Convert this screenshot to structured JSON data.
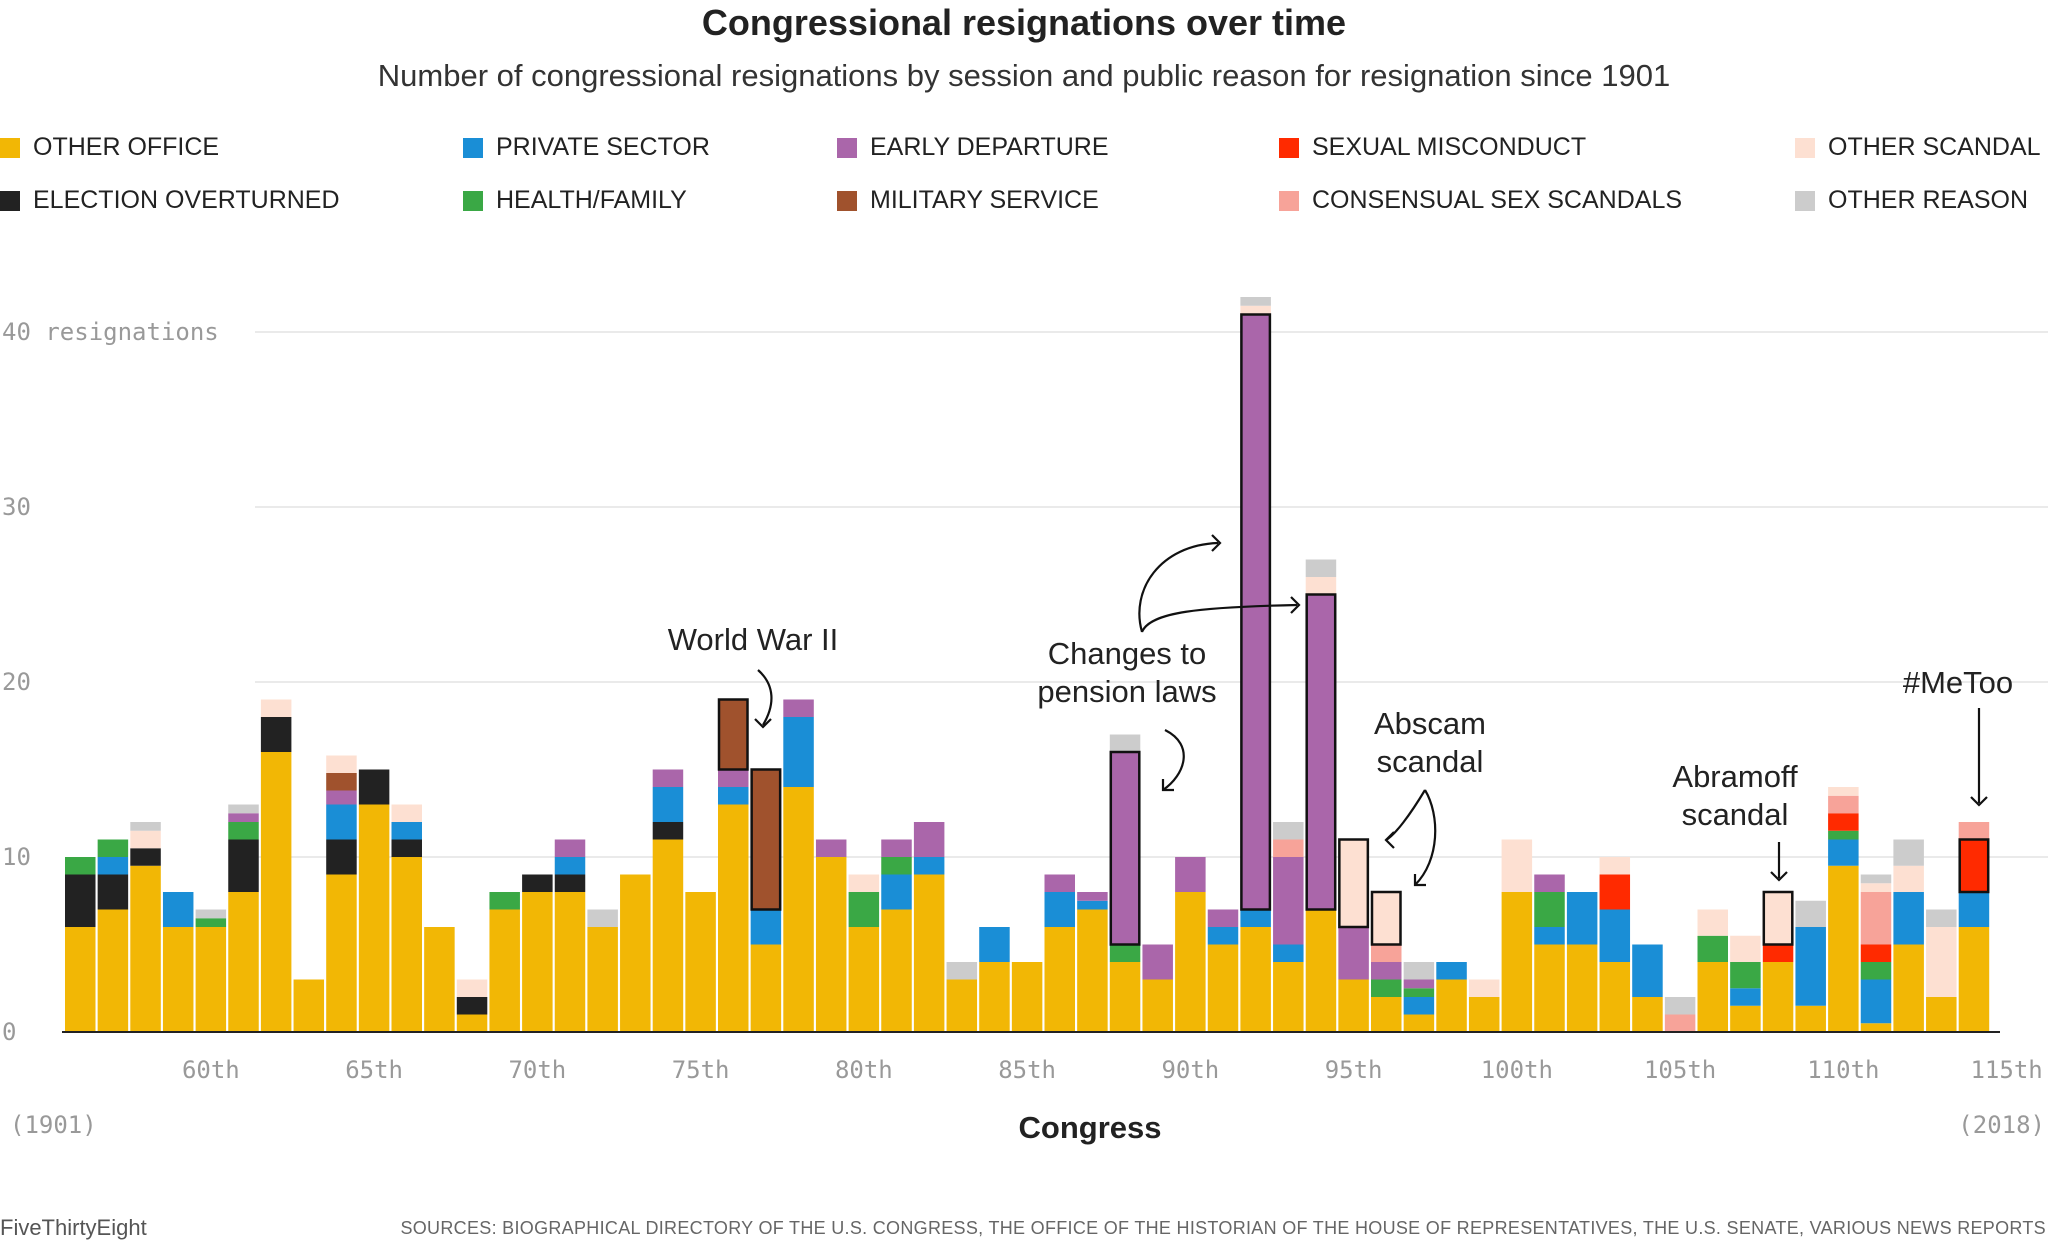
{
  "title": "Congressional resignations over time",
  "subtitle": "Number of congressional resignations by session and public reason for resignation since 1901",
  "legend": [
    {
      "key": "other_office",
      "label": "OTHER OFFICE",
      "color": "#F2B705"
    },
    {
      "key": "private_sector",
      "label": "PRIVATE SECTOR",
      "color": "#1A8ED6"
    },
    {
      "key": "early_departure",
      "label": "EARLY DEPARTURE",
      "color": "#AA66AA"
    },
    {
      "key": "sexual_misconduct",
      "label": "SEXUAL MISCONDUCT",
      "color": "#FF2A00"
    },
    {
      "key": "other_scandal",
      "label": "OTHER SCANDAL",
      "color": "#FDE0D2"
    },
    {
      "key": "election_overturned",
      "label": "ELECTION OVERTURNED",
      "color": "#222222"
    },
    {
      "key": "health_family",
      "label": "HEALTH/FAMILY",
      "color": "#3AA845"
    },
    {
      "key": "military_service",
      "label": "MILITARY SERVICE",
      "color": "#A0522D"
    },
    {
      "key": "consensual_sex_scandals",
      "label": "CONSENSUAL SEX SCANDALS",
      "color": "#F7A399"
    },
    {
      "key": "other_reason",
      "label": "OTHER REASON",
      "color": "#CCCCCC"
    }
  ],
  "chart_data": {
    "type": "bar",
    "stacked": true,
    "title": "Congressional resignations over time",
    "subtitle": "Number of congressional resignations by session and public reason for resignation since 1901",
    "xlabel": "Congress",
    "ylabel_inline": "40 resignations",
    "ylim": [
      0,
      42
    ],
    "yticks": [
      0,
      10,
      20,
      30,
      40
    ],
    "grid": true,
    "legend_position": "top",
    "x_start_label": "(1901)",
    "x_end_label": "(2018)",
    "x_tick_labels": [
      {
        "congress": 60,
        "label": "60th"
      },
      {
        "congress": 65,
        "label": "65th"
      },
      {
        "congress": 70,
        "label": "70th"
      },
      {
        "congress": 75,
        "label": "75th"
      },
      {
        "congress": 80,
        "label": "80th"
      },
      {
        "congress": 85,
        "label": "85th"
      },
      {
        "congress": 90,
        "label": "90th"
      },
      {
        "congress": 95,
        "label": "95th"
      },
      {
        "congress": 100,
        "label": "100th"
      },
      {
        "congress": 105,
        "label": "105th"
      },
      {
        "congress": 110,
        "label": "110th"
      },
      {
        "congress": 115,
        "label": "115th"
      }
    ],
    "order": [
      "other_office",
      "election_overturned",
      "private_sector",
      "health_family",
      "early_departure",
      "military_service",
      "sexual_misconduct",
      "consensual_sex_scandals",
      "other_scandal",
      "other_reason"
    ],
    "bars": [
      {
        "congress": 56,
        "other_office": 6,
        "election_overturned": 3,
        "health_family": 1
      },
      {
        "congress": 57,
        "other_office": 7,
        "election_overturned": 2,
        "private_sector": 1,
        "health_family": 1
      },
      {
        "congress": 58,
        "other_office": 9.5,
        "election_overturned": 1,
        "other_scandal": 1,
        "other_reason": 0.5
      },
      {
        "congress": 59,
        "other_office": 6,
        "private_sector": 2
      },
      {
        "congress": 60,
        "other_office": 6,
        "health_family": 0.5,
        "other_reason": 0.5
      },
      {
        "congress": 61,
        "other_office": 8,
        "election_overturned": 3,
        "health_family": 1,
        "early_departure": 0.5,
        "other_reason": 0.5
      },
      {
        "congress": 62,
        "other_office": 16,
        "election_overturned": 2,
        "other_scandal": 1
      },
      {
        "congress": 63,
        "other_office": 3
      },
      {
        "congress": 64,
        "other_office": 9,
        "election_overturned": 2,
        "private_sector": 2,
        "early_departure": 0.8,
        "military_service": 1,
        "other_scandal": 1
      },
      {
        "congress": 65,
        "other_office": 13,
        "election_overturned": 2
      },
      {
        "congress": 66,
        "other_office": 10,
        "election_overturned": 1,
        "private_sector": 1,
        "other_scandal": 1
      },
      {
        "congress": 67,
        "other_office": 6
      },
      {
        "congress": 68,
        "other_office": 1,
        "election_overturned": 1,
        "other_scandal": 1
      },
      {
        "congress": 69,
        "other_office": 7,
        "health_family": 1
      },
      {
        "congress": 70,
        "other_office": 8,
        "election_overturned": 1
      },
      {
        "congress": 71,
        "other_office": 8,
        "election_overturned": 1,
        "early_departure": 1,
        "private_sector": 1
      },
      {
        "congress": 72,
        "other_office": 6,
        "other_reason": 1
      },
      {
        "congress": 73,
        "other_office": 9
      },
      {
        "congress": 74,
        "other_office": 11,
        "election_overturned": 1,
        "early_departure": 1,
        "private_sector": 2
      },
      {
        "congress": 75,
        "other_office": 8
      },
      {
        "congress": 76,
        "other_office": 13,
        "private_sector": 1,
        "early_departure": 1,
        "military_service": 4
      },
      {
        "congress": 77,
        "other_office": 5,
        "private_sector": 2,
        "military_service": 8
      },
      {
        "congress": 78,
        "other_office": 14,
        "private_sector": 4,
        "early_departure": 1
      },
      {
        "congress": 79,
        "other_office": 10,
        "early_departure": 1
      },
      {
        "congress": 80,
        "other_office": 6,
        "health_family": 2,
        "other_scandal": 1
      },
      {
        "congress": 81,
        "other_office": 7,
        "private_sector": 2,
        "health_family": 1,
        "early_departure": 1
      },
      {
        "congress": 82,
        "other_office": 9,
        "private_sector": 1,
        "early_departure": 2
      },
      {
        "congress": 83,
        "other_office": 3,
        "other_reason": 1
      },
      {
        "congress": 84,
        "other_office": 4,
        "private_sector": 2
      },
      {
        "congress": 85,
        "other_office": 4
      },
      {
        "congress": 86,
        "other_office": 6,
        "private_sector": 2,
        "early_departure": 1
      },
      {
        "congress": 87,
        "other_office": 7,
        "private_sector": 0.5,
        "early_departure": 0.5
      },
      {
        "congress": 88,
        "other_office": 4,
        "health_family": 1,
        "early_departure": 11,
        "other_reason": 1
      },
      {
        "congress": 89,
        "other_office": 3,
        "early_departure": 2
      },
      {
        "congress": 90,
        "other_office": 8,
        "early_departure": 2
      },
      {
        "congress": 91,
        "other_office": 5,
        "private_sector": 1,
        "early_departure": 1
      },
      {
        "congress": 92,
        "other_office": 6,
        "private_sector": 1,
        "early_departure": 34,
        "other_scandal": 0.5,
        "other_reason": 0.5
      },
      {
        "congress": 93,
        "other_office": 4,
        "private_sector": 1,
        "early_departure": 5,
        "consensual_sex_scandals": 1,
        "other_reason": 1
      },
      {
        "congress": 94,
        "other_office": 7,
        "early_departure": 18,
        "other_scandal": 1,
        "other_reason": 1
      },
      {
        "congress": 95,
        "other_office": 3,
        "early_departure": 3,
        "other_scandal": 5
      },
      {
        "congress": 96,
        "other_office": 2,
        "early_departure": 1,
        "health_family": 1,
        "consensual_sex_scandals": 1,
        "other_scandal": 3
      },
      {
        "congress": 97,
        "other_office": 1,
        "private_sector": 1,
        "early_departure": 0.5,
        "health_family": 0.5,
        "other_reason": 1
      },
      {
        "congress": 98,
        "other_office": 3,
        "private_sector": 1
      },
      {
        "congress": 99,
        "other_office": 2,
        "other_scandal": 1
      },
      {
        "congress": 100,
        "other_office": 8,
        "other_scandal": 3
      },
      {
        "congress": 101,
        "other_office": 5,
        "private_sector": 1,
        "early_departure": 1,
        "health_family": 2
      },
      {
        "congress": 102,
        "other_office": 5,
        "private_sector": 3
      },
      {
        "congress": 103,
        "other_office": 4,
        "private_sector": 3,
        "sexual_misconduct": 2,
        "other_scandal": 1
      },
      {
        "congress": 104,
        "other_office": 2,
        "private_sector": 3
      },
      {
        "congress": 105,
        "other_reason": 1,
        "consensual_sex_scandals": 1
      },
      {
        "congress": 106,
        "other_office": 4,
        "health_family": 1.5,
        "other_scandal": 1.5
      },
      {
        "congress": 107,
        "other_office": 1.5,
        "private_sector": 1,
        "health_family": 1.5,
        "other_scandal": 1.5
      },
      {
        "congress": 108,
        "other_office": 4,
        "sexual_misconduct": 1,
        "other_scandal": 3
      },
      {
        "congress": 109,
        "other_office": 1.5,
        "private_sector": 4.5,
        "other_reason": 1.5
      },
      {
        "congress": 110,
        "other_office": 9.5,
        "private_sector": 1.5,
        "health_family": 0.5,
        "sexual_misconduct": 1,
        "consensual_sex_scandals": 1,
        "other_scandal": 0.5
      },
      {
        "congress": 111,
        "other_office": 0.5,
        "private_sector": 2.5,
        "health_family": 1,
        "consensual_sex_scandals": 3,
        "sexual_misconduct": 1,
        "other_scandal": 0.5,
        "other_reason": 0.5
      },
      {
        "congress": 112,
        "other_office": 5,
        "private_sector": 3,
        "other_scandal": 1.5,
        "other_reason": 1.5
      },
      {
        "congress": 113,
        "other_office": 2,
        "other_scandal": 4,
        "other_reason": 1
      },
      {
        "congress": 114,
        "other_office": 6,
        "private_sector": 2,
        "sexual_misconduct": 3,
        "consensual_sex_scandals": 1
      }
    ],
    "highlights": [
      {
        "congress": 76,
        "from": 15,
        "to": 19
      },
      {
        "congress": 77,
        "from": 7,
        "to": 15
      },
      {
        "congress": 88,
        "from": 5,
        "to": 16
      },
      {
        "congress": 92,
        "from": 7,
        "to": 41
      },
      {
        "congress": 94,
        "from": 7,
        "to": 25
      },
      {
        "congress": 95,
        "from": 6,
        "to": 11
      },
      {
        "congress": 96,
        "from": 5,
        "to": 8
      },
      {
        "congress": 108,
        "from": 5,
        "to": 8
      },
      {
        "congress": 114,
        "from": 8,
        "to": 11
      }
    ],
    "annotations": [
      {
        "key": "ww2",
        "lines": [
          "World War II"
        ]
      },
      {
        "key": "pension",
        "lines": [
          "Changes to",
          "pension laws"
        ]
      },
      {
        "key": "abscam",
        "lines": [
          "Abscam",
          "scandal"
        ]
      },
      {
        "key": "abramoff",
        "lines": [
          "Abramoff",
          "scandal"
        ]
      },
      {
        "key": "metoo",
        "lines": [
          "#MeToo"
        ]
      }
    ]
  },
  "footer": {
    "brand": "FiveThirtyEight",
    "sources": "SOURCES: BIOGRAPHICAL DIRECTORY OF THE U.S. CONGRESS, THE OFFICE OF THE HISTORIAN OF THE HOUSE OF REPRESENTATIVES, THE U.S. SENATE, VARIOUS NEWS REPORTS"
  }
}
